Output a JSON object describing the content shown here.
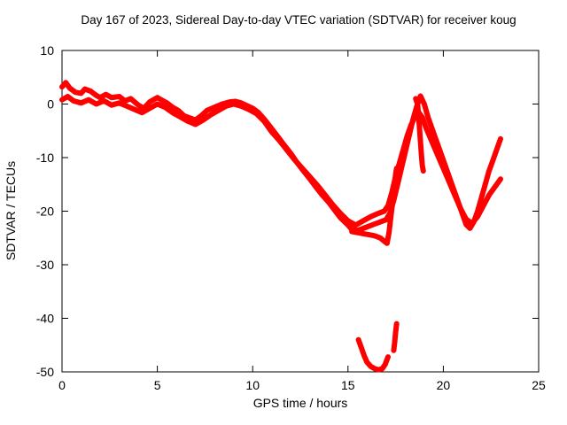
{
  "chart_data": {
    "type": "line",
    "title": "Day 167 of 2023, Sidereal Day-to-day VTEC variation (SDTVAR) for receiver koug",
    "xlabel": "GPS time / hours",
    "ylabel": "SDTVAR / TECUs",
    "xlim": [
      0,
      25
    ],
    "ylim": [
      -50,
      10
    ],
    "xticks": [
      0,
      5,
      10,
      15,
      20,
      25
    ],
    "yticks": [
      -50,
      -40,
      -30,
      -20,
      -10,
      0,
      10
    ],
    "grid": false,
    "legend": "none",
    "color": "#ff0000",
    "series": [
      {
        "name": "trace-upper",
        "points": [
          [
            0.0,
            3.2
          ],
          [
            0.2,
            4.0
          ],
          [
            0.4,
            3.0
          ],
          [
            0.7,
            2.2
          ],
          [
            1.0,
            2.0
          ],
          [
            1.2,
            2.8
          ],
          [
            1.5,
            2.4
          ],
          [
            1.8,
            1.6
          ],
          [
            2.0,
            1.2
          ],
          [
            2.3,
            1.8
          ],
          [
            2.6,
            1.2
          ],
          [
            3.0,
            1.4
          ],
          [
            3.3,
            0.6
          ],
          [
            3.6,
            1.0
          ],
          [
            4.0,
            -0.2
          ],
          [
            4.3,
            -0.8
          ],
          [
            4.6,
            0.4
          ],
          [
            5.0,
            1.2
          ],
          [
            5.2,
            0.8
          ],
          [
            5.5,
            0.2
          ],
          [
            5.8,
            -0.6
          ],
          [
            6.1,
            -1.2
          ],
          [
            6.4,
            -2.2
          ],
          [
            6.7,
            -2.6
          ],
          [
            7.0,
            -3.0
          ],
          [
            7.3,
            -2.2
          ],
          [
            7.6,
            -1.2
          ],
          [
            8.0,
            -0.6
          ],
          [
            8.4,
            0.0
          ],
          [
            8.8,
            0.4
          ],
          [
            9.1,
            0.5
          ],
          [
            9.4,
            0.2
          ],
          [
            9.7,
            -0.3
          ],
          [
            10.0,
            -0.8
          ],
          [
            10.3,
            -1.6
          ],
          [
            10.6,
            -2.8
          ],
          [
            11.0,
            -4.6
          ],
          [
            11.3,
            -6.0
          ],
          [
            11.6,
            -7.4
          ],
          [
            12.0,
            -9.2
          ],
          [
            12.3,
            -10.8
          ],
          [
            12.6,
            -12.2
          ],
          [
            13.0,
            -14.0
          ],
          [
            13.3,
            -15.4
          ],
          [
            13.6,
            -16.8
          ],
          [
            14.0,
            -18.4
          ],
          [
            14.3,
            -19.8
          ],
          [
            14.6,
            -21.2
          ],
          [
            15.0,
            -22.6
          ],
          [
            15.2,
            -23.4
          ],
          [
            15.5,
            -23.6
          ],
          [
            15.8,
            -23.2
          ],
          [
            16.1,
            -22.8
          ],
          [
            16.4,
            -22.4
          ],
          [
            16.7,
            -22.0
          ],
          [
            17.0,
            -21.6
          ],
          [
            17.2,
            -20.4
          ],
          [
            17.4,
            -18.0
          ],
          [
            17.6,
            -15.0
          ],
          [
            17.8,
            -12.0
          ],
          [
            18.0,
            -9.0
          ],
          [
            18.2,
            -6.0
          ],
          [
            18.4,
            -3.0
          ],
          [
            18.6,
            -0.5
          ],
          [
            18.8,
            1.5
          ],
          [
            19.0,
            0.0
          ],
          [
            19.2,
            -2.5
          ],
          [
            19.5,
            -5.5
          ],
          [
            19.8,
            -8.5
          ],
          [
            20.1,
            -11.5
          ],
          [
            20.4,
            -14.5
          ],
          [
            20.7,
            -17.5
          ],
          [
            21.0,
            -20.5
          ],
          [
            21.2,
            -22.5
          ],
          [
            21.4,
            -23.2
          ],
          [
            21.6,
            -22.0
          ],
          [
            21.8,
            -20.0
          ],
          [
            22.0,
            -17.5
          ],
          [
            22.2,
            -15.0
          ],
          [
            22.4,
            -12.5
          ],
          [
            22.6,
            -10.5
          ],
          [
            22.8,
            -8.5
          ],
          [
            23.0,
            -6.5
          ]
        ]
      },
      {
        "name": "trace-lower",
        "points": [
          [
            0.0,
            0.8
          ],
          [
            0.3,
            1.4
          ],
          [
            0.6,
            0.6
          ],
          [
            1.0,
            0.2
          ],
          [
            1.4,
            0.8
          ],
          [
            1.8,
            0.0
          ],
          [
            2.2,
            0.6
          ],
          [
            2.6,
            -0.2
          ],
          [
            3.0,
            0.2
          ],
          [
            3.4,
            -0.4
          ],
          [
            3.8,
            -1.0
          ],
          [
            4.2,
            -1.6
          ],
          [
            4.6,
            -0.8
          ],
          [
            5.0,
            0.0
          ],
          [
            5.4,
            -0.6
          ],
          [
            5.8,
            -1.6
          ],
          [
            6.2,
            -2.4
          ],
          [
            6.6,
            -3.2
          ],
          [
            7.0,
            -3.8
          ],
          [
            7.4,
            -3.0
          ],
          [
            7.8,
            -2.0
          ],
          [
            8.2,
            -1.2
          ],
          [
            8.6,
            -0.4
          ],
          [
            9.0,
            0.0
          ],
          [
            9.4,
            -0.4
          ],
          [
            9.8,
            -1.0
          ],
          [
            10.2,
            -1.8
          ],
          [
            10.6,
            -3.2
          ],
          [
            11.0,
            -5.2
          ],
          [
            11.4,
            -6.8
          ],
          [
            11.8,
            -8.6
          ],
          [
            12.2,
            -10.4
          ],
          [
            12.6,
            -12.0
          ],
          [
            13.0,
            -13.6
          ],
          [
            13.4,
            -15.2
          ],
          [
            13.8,
            -17.0
          ],
          [
            14.2,
            -18.8
          ],
          [
            14.6,
            -20.4
          ],
          [
            15.0,
            -21.8
          ],
          [
            15.4,
            -22.6
          ],
          [
            15.8,
            -21.8
          ],
          [
            16.2,
            -21.0
          ],
          [
            16.6,
            -20.4
          ],
          [
            16.9,
            -20.0
          ],
          [
            17.1,
            -19.0
          ],
          [
            17.3,
            -16.5
          ],
          [
            17.5,
            -13.5
          ],
          [
            17.7,
            -11.0
          ],
          [
            17.9,
            -8.5
          ],
          [
            18.1,
            -6.0
          ],
          [
            18.3,
            -4.0
          ],
          [
            18.5,
            -2.5
          ],
          [
            18.7,
            -1.5
          ],
          [
            18.9,
            -2.5
          ],
          [
            19.1,
            -4.5
          ],
          [
            19.4,
            -7.0
          ],
          [
            19.7,
            -9.5
          ],
          [
            20.0,
            -12.0
          ],
          [
            20.3,
            -14.5
          ],
          [
            20.6,
            -17.0
          ],
          [
            20.9,
            -19.5
          ],
          [
            21.2,
            -21.5
          ],
          [
            21.5,
            -22.3
          ],
          [
            21.8,
            -21.0
          ],
          [
            22.1,
            -19.0
          ],
          [
            22.4,
            -17.0
          ],
          [
            22.7,
            -15.5
          ],
          [
            23.0,
            -14.0
          ]
        ]
      },
      {
        "name": "trace-deep-dip-spike",
        "points": [
          [
            15.2,
            -23.8
          ],
          [
            15.5,
            -24.0
          ],
          [
            15.8,
            -24.2
          ],
          [
            16.1,
            -24.4
          ],
          [
            16.4,
            -24.6
          ],
          [
            16.7,
            -25.0
          ],
          [
            16.9,
            -25.6
          ],
          [
            17.05,
            -26.0
          ],
          [
            17.15,
            -24.0
          ],
          [
            17.25,
            -21.0
          ],
          [
            17.35,
            -18.0
          ],
          [
            17.45,
            -15.0
          ],
          [
            17.5,
            -13.0
          ],
          [
            17.55,
            -12.0
          ]
        ]
      },
      {
        "name": "trace-peak-drop",
        "points": [
          [
            18.55,
            1.0
          ],
          [
            18.65,
            0.0
          ],
          [
            18.7,
            -2.0
          ],
          [
            18.75,
            -4.5
          ],
          [
            18.8,
            -7.0
          ],
          [
            18.85,
            -9.5
          ],
          [
            18.9,
            -11.5
          ],
          [
            18.95,
            -12.5
          ]
        ]
      },
      {
        "name": "trace-bottom-arc",
        "points": [
          [
            15.55,
            -44.0
          ],
          [
            15.7,
            -45.5
          ],
          [
            15.85,
            -47.0
          ],
          [
            16.0,
            -48.2
          ],
          [
            16.2,
            -49.0
          ],
          [
            16.4,
            -49.4
          ],
          [
            16.6,
            -49.6
          ],
          [
            16.8,
            -49.4
          ],
          [
            16.95,
            -48.6
          ],
          [
            17.1,
            -47.2
          ]
        ]
      },
      {
        "name": "trace-bottom-tick",
        "points": [
          [
            17.4,
            -46.0
          ],
          [
            17.45,
            -44.5
          ],
          [
            17.5,
            -42.5
          ],
          [
            17.55,
            -41.0
          ]
        ]
      }
    ]
  }
}
